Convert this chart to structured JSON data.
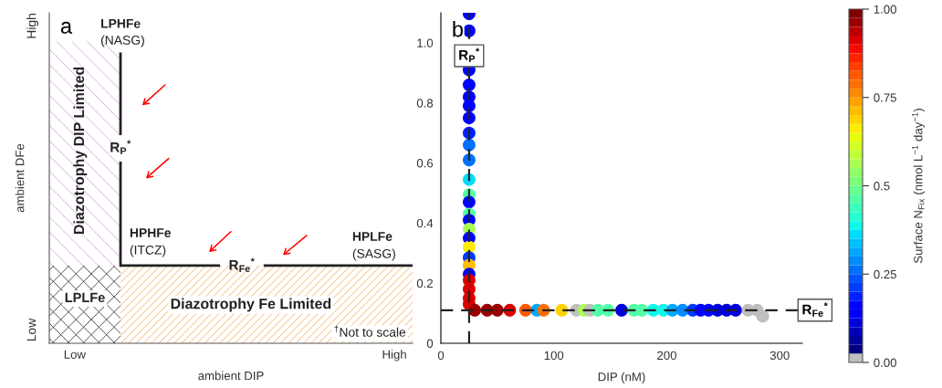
{
  "chart_data": [
    {
      "type": "other",
      "title": "a",
      "xlabel": "ambient DIP",
      "ylabel": "ambient DFe",
      "categories": [
        "Low",
        "High"
      ],
      "annotations": [
        "LPHFe",
        "(NASG)",
        "Diazotrophy DIP Limited",
        "R$_{P}$$^{*}$",
        "HPHFe",
        "(ITCZ)",
        "R$_{Fe}$$^{*}$",
        "HPLFe",
        "(SASG)",
        "LPLFe",
        "Diazotrophy Fe Limited",
        "$^{†}$Not to scale",
        "Low",
        "High"
      ]
    },
    {
      "type": "scatter",
      "title": "b",
      "xlabel": "DIP (nM)",
      "clabel": "Surface N$_{Fix}$ (nmol L$^{−1}$ day$^{−1}$)",
      "marker": "circle",
      "x": [
        25,
        25,
        25,
        25,
        25,
        25,
        25,
        25,
        25,
        25,
        25,
        25,
        25,
        25,
        25,
        25,
        25,
        25,
        25,
        25,
        25,
        25,
        25,
        25,
        25,
        30,
        41,
        50,
        61,
        75,
        85,
        91,
        107,
        120,
        127,
        132,
        139,
        148,
        160,
        171,
        178,
        188,
        197,
        205,
        214,
        223,
        230,
        237,
        245,
        253,
        261,
        272,
        280,
        285
      ],
      "values": [
        1.097,
        1.04,
        0.91,
        0.86,
        0.82,
        0.79,
        0.75,
        0.7,
        0.66,
        0.61,
        0.545,
        0.495,
        0.47,
        0.43,
        0.41,
        0.38,
        0.35,
        0.32,
        0.285,
        0.26,
        0.23,
        0.21,
        0.18,
        0.15,
        0.13,
        0.11,
        0.11,
        0.11,
        0.11,
        0.11,
        0.11,
        0.11,
        0.11,
        0.11,
        0.11,
        0.11,
        0.11,
        0.11,
        0.11,
        0.11,
        0.11,
        0.11,
        0.11,
        0.11,
        0.11,
        0.11,
        0.11,
        0.11,
        0.11,
        0.11,
        0.11,
        0.11,
        0.11,
        0.09
      ],
      "cvalues": [
        0.15,
        0.15,
        0.15,
        0.15,
        0.15,
        0.15,
        0.15,
        0.18,
        0.25,
        0.25,
        0.35,
        0.45,
        0.15,
        0.45,
        0.15,
        0.55,
        0.15,
        0.65,
        0.2,
        0.72,
        0.15,
        0.9,
        0.9,
        0.9,
        0.9,
        0.95,
        0.95,
        0.95,
        0.92,
        0.82,
        0.3,
        0.78,
        0.68,
        0,
        0.55,
        0,
        0.45,
        0.45,
        0.12,
        0.45,
        0.45,
        0.38,
        0.38,
        0.3,
        0.28,
        0.2,
        0.15,
        0.15,
        0.12,
        0.12,
        0.12,
        0,
        0,
        0
      ],
      "xlim": [
        0,
        320
      ],
      "xticks": [
        0,
        100,
        200,
        300
      ],
      "ylim": [
        0,
        1.1
      ],
      "yticks": [
        0,
        0.2,
        0.4,
        0.6,
        0.8,
        {
          "value": 1.0,
          "label": "1.0"
        }
      ],
      "clim": [
        0,
        1
      ],
      "cticks": [
        {
          "value": 0,
          "label": "0.00"
        },
        0.25,
        0.5,
        0.75,
        {
          "value": 1,
          "label": "1.00"
        }
      ],
      "ref_lines": [
        {
          "axis": "x",
          "value": 25,
          "label": "R$_{P}$$^{*}$",
          "color": "#222222",
          "line_style": "dashed"
        },
        {
          "axis": "y",
          "value": 0.11,
          "label": "R$_{Fe}$$^{*}$",
          "color": "#222222",
          "line_style": "dashed"
        }
      ]
    }
  ]
}
